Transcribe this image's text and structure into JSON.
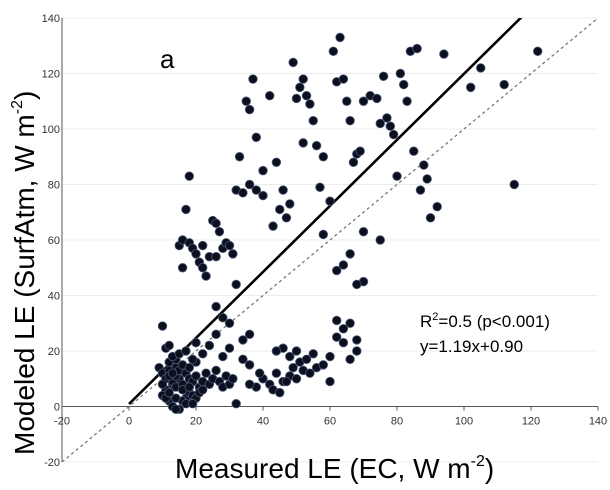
{
  "chart_data": {
    "type": "scatter",
    "panel_label": "a",
    "xlabel_main": "Measured LE (EC, W m",
    "xlabel_sup": "-2",
    "xlabel_end": ")",
    "ylabel_main": "Modeled LE (SurfAtm, W m",
    "ylabel_sup": "-2",
    "ylabel_end": ")",
    "xlim": [
      -20,
      140
    ],
    "ylim": [
      -20,
      140
    ],
    "xticks": [
      -20,
      0,
      20,
      40,
      60,
      80,
      100,
      120,
      140
    ],
    "yticks": [
      -20,
      0,
      20,
      40,
      60,
      80,
      100,
      120,
      140
    ],
    "r2_prefix": "R",
    "r2_sup": "2",
    "r2_value": "=0.5 (p<0.001)",
    "equation": "y=1.19x+0.90",
    "regression": {
      "slope": 1.19,
      "intercept": 0.9
    },
    "reference_line": "1:1",
    "colors": {
      "points": "#0b0f1e",
      "regression": "#000000",
      "one_to_one": "#777777"
    },
    "points": [
      [
        10,
        29
      ],
      [
        11,
        21
      ],
      [
        12,
        22
      ],
      [
        14,
        14
      ],
      [
        15,
        10
      ],
      [
        13,
        8
      ],
      [
        11,
        6
      ],
      [
        10,
        4
      ],
      [
        12,
        2
      ],
      [
        13,
        0
      ],
      [
        15,
        -1
      ],
      [
        17,
        3
      ],
      [
        18,
        5
      ],
      [
        9,
        14
      ],
      [
        10,
        12
      ],
      [
        11,
        10
      ],
      [
        12,
        13
      ],
      [
        13,
        9
      ],
      [
        14,
        7
      ],
      [
        14,
        11
      ],
      [
        15,
        13
      ],
      [
        16,
        8
      ],
      [
        17,
        12
      ],
      [
        18,
        10
      ],
      [
        19,
        9
      ],
      [
        20,
        11
      ],
      [
        21,
        7
      ],
      [
        22,
        9
      ],
      [
        23,
        12
      ],
      [
        24,
        8
      ],
      [
        25,
        10
      ],
      [
        26,
        13
      ],
      [
        27,
        9
      ],
      [
        28,
        7
      ],
      [
        29,
        11
      ],
      [
        30,
        8
      ],
      [
        31,
        10
      ],
      [
        12,
        16
      ],
      [
        14,
        17
      ],
      [
        16,
        15
      ],
      [
        18,
        14
      ],
      [
        20,
        16
      ],
      [
        13,
        18
      ],
      [
        15,
        19
      ],
      [
        17,
        20
      ],
      [
        19,
        17
      ],
      [
        10,
        8
      ],
      [
        11,
        3
      ],
      [
        12,
        5
      ],
      [
        16,
        6
      ],
      [
        18,
        7
      ],
      [
        19,
        4
      ],
      [
        20,
        3
      ],
      [
        21,
        5
      ],
      [
        22,
        6
      ],
      [
        16,
        2
      ],
      [
        14,
        3
      ],
      [
        17,
        1
      ],
      [
        19,
        1
      ],
      [
        14,
        -1
      ],
      [
        12,
        11
      ],
      [
        13,
        12
      ],
      [
        15,
        58
      ],
      [
        16,
        60
      ],
      [
        17,
        71
      ],
      [
        18,
        59
      ],
      [
        19,
        57
      ],
      [
        20,
        55
      ],
      [
        21,
        52
      ],
      [
        22,
        50
      ],
      [
        23,
        47
      ],
      [
        24,
        54
      ],
      [
        25,
        67
      ],
      [
        26,
        66
      ],
      [
        27,
        63
      ],
      [
        28,
        57
      ],
      [
        29,
        59
      ],
      [
        30,
        58
      ],
      [
        31,
        55
      ],
      [
        26,
        54
      ],
      [
        18,
        83
      ],
      [
        22,
        58
      ],
      [
        16,
        50
      ],
      [
        32,
        78
      ],
      [
        34,
        77
      ],
      [
        36,
        80
      ],
      [
        38,
        78
      ],
      [
        33,
        90
      ],
      [
        35,
        110
      ],
      [
        36,
        107
      ],
      [
        37,
        118
      ],
      [
        38,
        97
      ],
      [
        40,
        85
      ],
      [
        42,
        112
      ],
      [
        44,
        88
      ],
      [
        45,
        71
      ],
      [
        46,
        78
      ],
      [
        48,
        73
      ],
      [
        49,
        124
      ],
      [
        50,
        111
      ],
      [
        51,
        115
      ],
      [
        52,
        118
      ],
      [
        53,
        112
      ],
      [
        54,
        109
      ],
      [
        55,
        103
      ],
      [
        56,
        94
      ],
      [
        57,
        79
      ],
      [
        58,
        90
      ],
      [
        60,
        74
      ],
      [
        61,
        128
      ],
      [
        62,
        117
      ],
      [
        63,
        133
      ],
      [
        64,
        118
      ],
      [
        65,
        110
      ],
      [
        66,
        103
      ],
      [
        67,
        88
      ],
      [
        68,
        91
      ],
      [
        69,
        92
      ],
      [
        70,
        110
      ],
      [
        72,
        112
      ],
      [
        74,
        111
      ],
      [
        75,
        102
      ],
      [
        76,
        119
      ],
      [
        77,
        104
      ],
      [
        78,
        101
      ],
      [
        79,
        98
      ],
      [
        80,
        83
      ],
      [
        81,
        120
      ],
      [
        82,
        116
      ],
      [
        83,
        110
      ],
      [
        84,
        128
      ],
      [
        85,
        92
      ],
      [
        86,
        129
      ],
      [
        87,
        78
      ],
      [
        88,
        87
      ],
      [
        89,
        82
      ],
      [
        90,
        68
      ],
      [
        92,
        72
      ],
      [
        94,
        127
      ],
      [
        102,
        115
      ],
      [
        105,
        122
      ],
      [
        112,
        116
      ],
      [
        115,
        80
      ],
      [
        122,
        128
      ],
      [
        40,
        76
      ],
      [
        43,
        65
      ],
      [
        47,
        68
      ],
      [
        52,
        95
      ],
      [
        58,
        62
      ],
      [
        62,
        49
      ],
      [
        64,
        51
      ],
      [
        66,
        55
      ],
      [
        70,
        63
      ],
      [
        75,
        60
      ],
      [
        40,
        10
      ],
      [
        42,
        8
      ],
      [
        44,
        12
      ],
      [
        46,
        9
      ],
      [
        48,
        11
      ],
      [
        50,
        10
      ],
      [
        52,
        13
      ],
      [
        54,
        12
      ],
      [
        56,
        14
      ],
      [
        58,
        15
      ],
      [
        60,
        18
      ],
      [
        62,
        25
      ],
      [
        64,
        28
      ],
      [
        66,
        30
      ],
      [
        68,
        20
      ],
      [
        66,
        17
      ],
      [
        62,
        31
      ],
      [
        64,
        23
      ],
      [
        38,
        7
      ],
      [
        36,
        8
      ],
      [
        39,
        12
      ],
      [
        43,
        6
      ],
      [
        45,
        5
      ],
      [
        47,
        9
      ],
      [
        49,
        14
      ],
      [
        51,
        16
      ],
      [
        53,
        17
      ],
      [
        55,
        19
      ],
      [
        50,
        20
      ],
      [
        48,
        18
      ],
      [
        46,
        21
      ],
      [
        44,
        20
      ],
      [
        60,
        9
      ],
      [
        68,
        24
      ],
      [
        70,
        45
      ],
      [
        32,
        44
      ],
      [
        34,
        17
      ],
      [
        36,
        15
      ],
      [
        28,
        32
      ],
      [
        30,
        30
      ],
      [
        26,
        26
      ],
      [
        24,
        22
      ],
      [
        22,
        19
      ],
      [
        28,
        18
      ],
      [
        30,
        21
      ],
      [
        32,
        1
      ],
      [
        68,
        44
      ],
      [
        34,
        24
      ],
      [
        36,
        26
      ],
      [
        26,
        36
      ],
      [
        20,
        23
      ]
    ]
  }
}
